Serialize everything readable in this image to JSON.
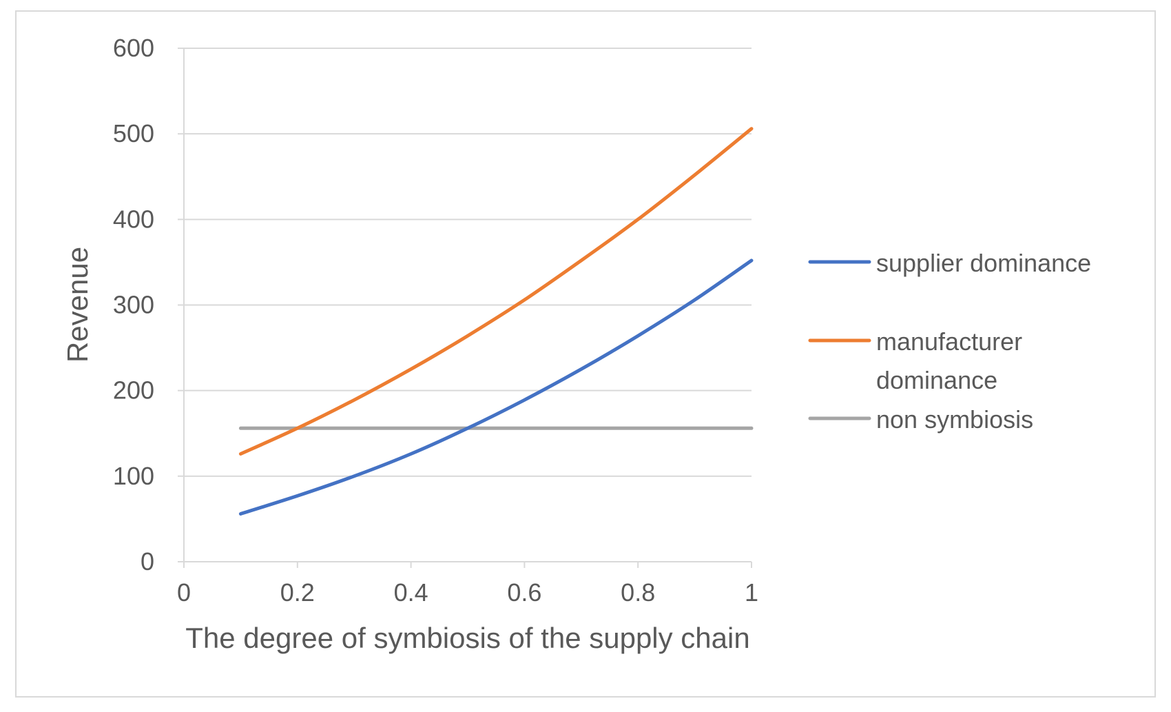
{
  "chart_data": {
    "type": "line",
    "title": "",
    "xlabel": "The degree of symbiosis of the supply chain",
    "ylabel": "Revenue",
    "xlim": [
      0,
      1
    ],
    "ylim": [
      0,
      600
    ],
    "x_ticks": [
      "0",
      "0.2",
      "0.4",
      "0.6",
      "0.8",
      "1"
    ],
    "y_ticks": [
      "0",
      "100",
      "200",
      "300",
      "400",
      "500",
      "600"
    ],
    "grid": "horizontal",
    "legend_position": "right",
    "x": [
      0.1,
      0.2,
      0.3,
      0.4,
      0.5,
      0.6,
      0.7,
      0.8,
      0.9,
      1.0
    ],
    "series": [
      {
        "name": "supplier dominance",
        "color": "#4472C4",
        "values": [
          56,
          77,
          100,
          126,
          156,
          189,
          225,
          264,
          306,
          352
        ]
      },
      {
        "name": "manufacturer dominance",
        "legend_lines": [
          "manufacturer",
          "dominance"
        ],
        "color": "#ED7D31",
        "values": [
          126,
          156,
          189,
          225,
          264,
          306,
          352,
          400,
          452,
          506
        ]
      },
      {
        "name": "non symbiosis",
        "color": "#A5A5A5",
        "values": [
          156,
          156,
          156,
          156,
          156,
          156,
          156,
          156,
          156,
          156
        ]
      }
    ]
  }
}
